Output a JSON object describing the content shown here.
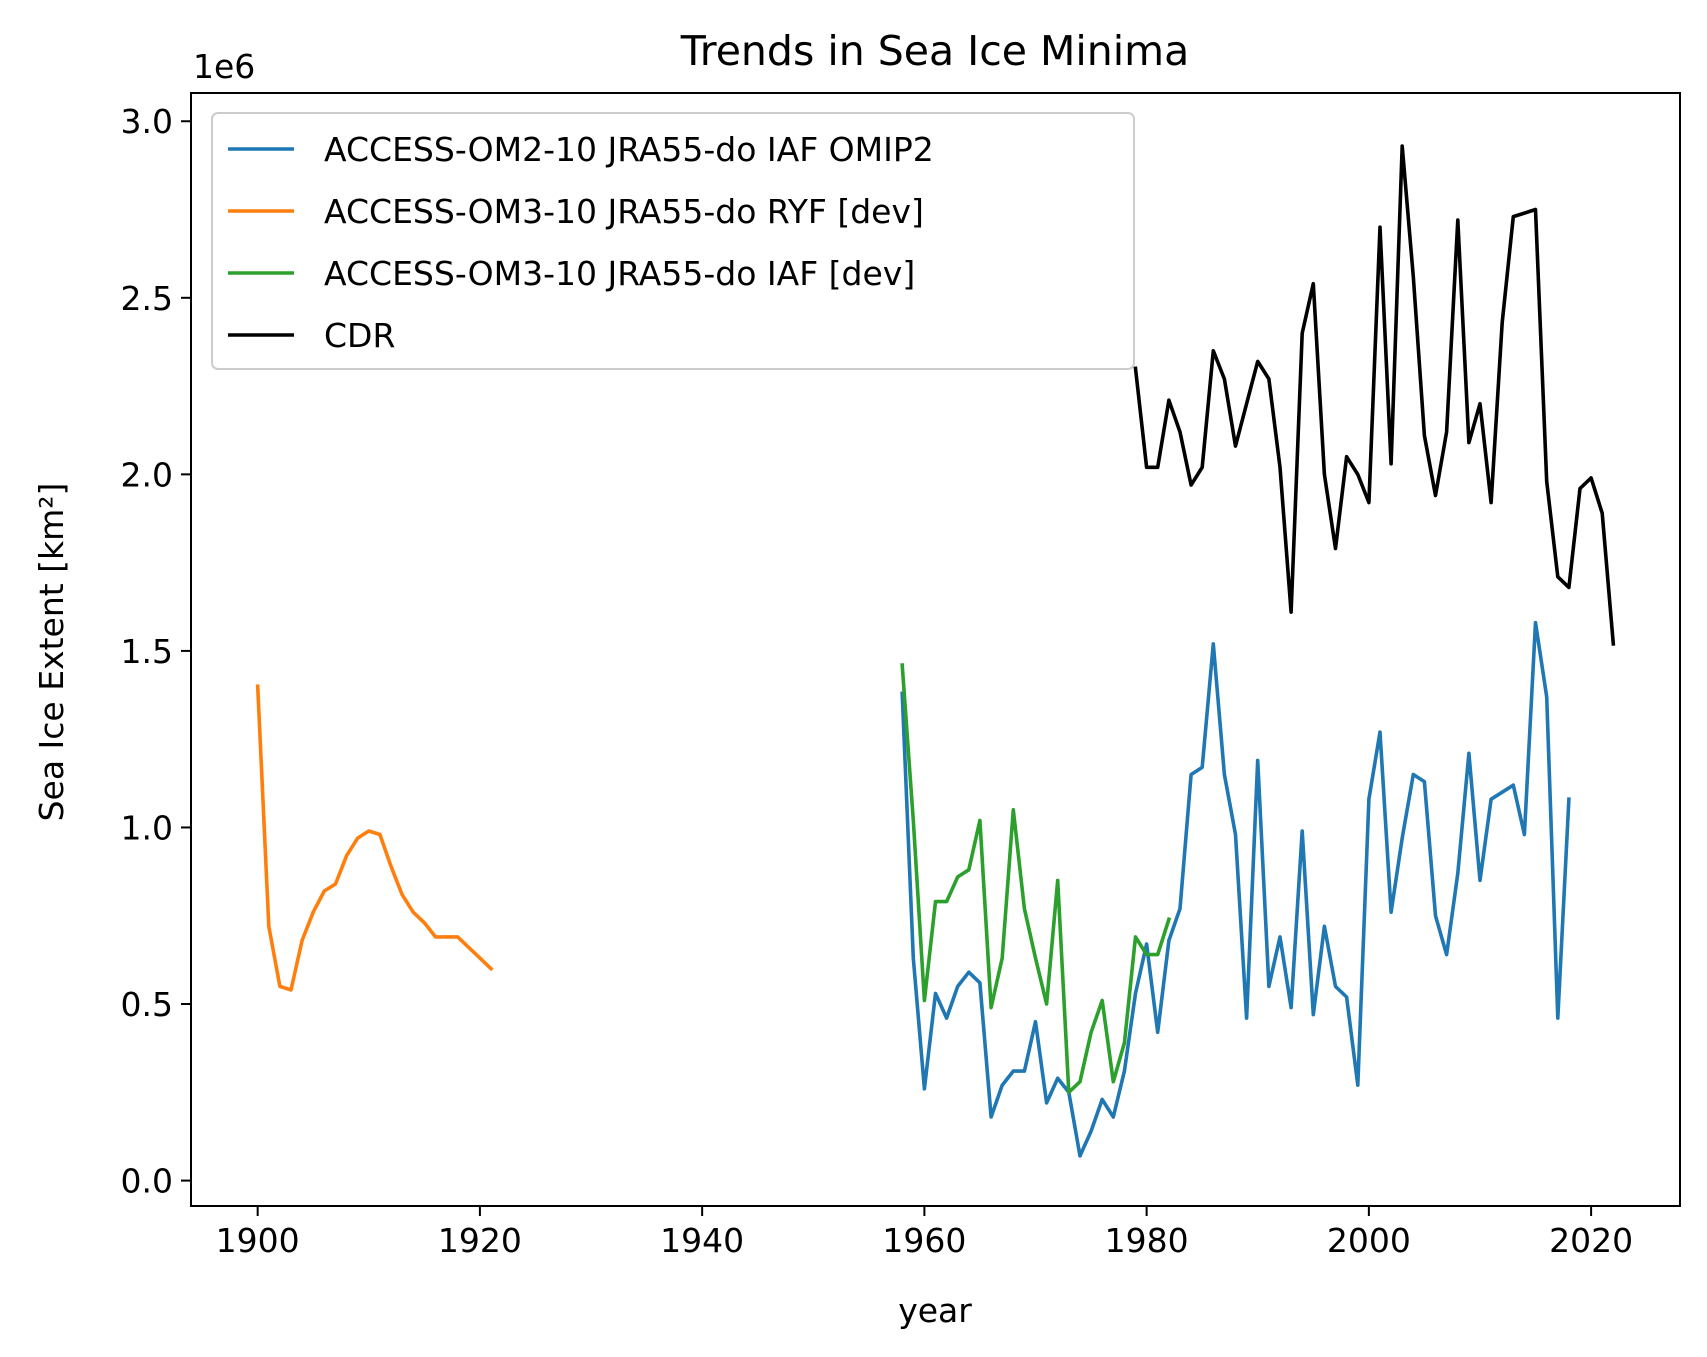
{
  "chart_data": {
    "type": "line",
    "title": "Trends in Sea Ice Minima",
    "xlabel": "year",
    "ylabel": "Sea Ice Extent [km²]",
    "y_offset_label": "1e6",
    "xlim": [
      1894,
      2028
    ],
    "ylim": [
      -0.072,
      3.08
    ],
    "y_scale_note": "values in units of 1e6 km²",
    "xticks": [
      1900,
      1920,
      1940,
      1960,
      1980,
      2000,
      2020
    ],
    "xtick_labels": [
      "1900",
      "1920",
      "1940",
      "1960",
      "1980",
      "2000",
      "2020"
    ],
    "yticks": [
      0.0,
      0.5,
      1.0,
      1.5,
      2.0,
      2.5,
      3.0
    ],
    "ytick_labels": [
      "0.0",
      "0.5",
      "1.0",
      "1.5",
      "2.0",
      "2.5",
      "3.0"
    ],
    "grid": false,
    "legend_position": "top-left",
    "series": [
      {
        "name": "ACCESS-OM2-10 JRA55-do IAF OMIP2",
        "color": "#1f77b4",
        "x": [
          1958,
          1959,
          1960,
          1961,
          1962,
          1963,
          1964,
          1965,
          1966,
          1967,
          1968,
          1969,
          1970,
          1971,
          1972,
          1973,
          1974,
          1975,
          1976,
          1977,
          1978,
          1979,
          1980,
          1981,
          1982,
          1983,
          1984,
          1985,
          1986,
          1987,
          1988,
          1989,
          1990,
          1991,
          1992,
          1993,
          1994,
          1995,
          1996,
          1997,
          1998,
          1999,
          2000,
          2001,
          2002,
          2003,
          2004,
          2005,
          2006,
          2007,
          2008,
          2009,
          2010,
          2011,
          2012,
          2013,
          2014,
          2015,
          2016,
          2017,
          2018
        ],
        "y": [
          1.38,
          0.63,
          0.26,
          0.53,
          0.46,
          0.55,
          0.59,
          0.56,
          0.18,
          0.27,
          0.31,
          0.31,
          0.45,
          0.22,
          0.29,
          0.25,
          0.07,
          0.14,
          0.23,
          0.18,
          0.31,
          0.53,
          0.67,
          0.42,
          0.68,
          0.77,
          1.15,
          1.17,
          1.52,
          1.15,
          0.98,
          0.46,
          1.19,
          0.55,
          0.69,
          0.49,
          0.99,
          0.47,
          0.72,
          0.55,
          0.52,
          0.27,
          1.08,
          1.27,
          0.76,
          0.97,
          1.15,
          1.13,
          0.75,
          0.64,
          0.87,
          1.21,
          0.85,
          1.08,
          1.1,
          1.12,
          0.98,
          1.58,
          1.37,
          0.46,
          1.08
        ]
      },
      {
        "name": "ACCESS-OM3-10 JRA55-do RYF [dev]",
        "color": "#ff7f0e",
        "x": [
          1900,
          1901,
          1902,
          1903,
          1904,
          1905,
          1906,
          1907,
          1908,
          1909,
          1910,
          1911,
          1912,
          1913,
          1914,
          1915,
          1916,
          1917,
          1918,
          1919,
          1920,
          1921
        ],
        "y": [
          1.4,
          0.72,
          0.55,
          0.54,
          0.68,
          0.76,
          0.82,
          0.84,
          0.92,
          0.97,
          0.99,
          0.98,
          0.89,
          0.81,
          0.76,
          0.73,
          0.69,
          0.69,
          0.69,
          0.66,
          0.63,
          0.6
        ]
      },
      {
        "name": "ACCESS-OM3-10 JRA55-do IAF [dev]",
        "color": "#2ca02c",
        "x": [
          1958,
          1959,
          1960,
          1961,
          1962,
          1963,
          1964,
          1965,
          1966,
          1967,
          1968,
          1969,
          1970,
          1971,
          1972,
          1973,
          1974,
          1975,
          1976,
          1977,
          1978,
          1979,
          1980,
          1981,
          1982
        ],
        "y": [
          1.46,
          1.02,
          0.51,
          0.79,
          0.79,
          0.86,
          0.88,
          1.02,
          0.49,
          0.63,
          1.05,
          0.77,
          0.63,
          0.5,
          0.85,
          0.25,
          0.28,
          0.42,
          0.51,
          0.28,
          0.39,
          0.69,
          0.64,
          0.64,
          0.74
        ]
      },
      {
        "name": "CDR",
        "color": "#000000",
        "x": [
          1979,
          1980,
          1981,
          1982,
          1983,
          1984,
          1985,
          1986,
          1987,
          1988,
          1989,
          1990,
          1991,
          1992,
          1993,
          1994,
          1995,
          1996,
          1997,
          1998,
          1999,
          2000,
          2001,
          2002,
          2003,
          2004,
          2005,
          2006,
          2007,
          2008,
          2009,
          2010,
          2011,
          2012,
          2013,
          2014,
          2015,
          2016,
          2017,
          2018,
          2019,
          2020,
          2021,
          2022
        ],
        "y": [
          2.3,
          2.02,
          2.02,
          2.21,
          2.12,
          1.97,
          2.02,
          2.35,
          2.27,
          2.08,
          2.2,
          2.32,
          2.27,
          2.02,
          1.61,
          2.4,
          2.54,
          2.0,
          1.79,
          2.05,
          2.0,
          1.92,
          2.7,
          2.03,
          2.93,
          2.56,
          2.11,
          1.94,
          2.12,
          2.72,
          2.09,
          2.2,
          1.92,
          2.43,
          2.73,
          2.74,
          2.75,
          1.98,
          1.71,
          1.68,
          1.96,
          1.99,
          1.89,
          1.52
        ]
      }
    ]
  }
}
